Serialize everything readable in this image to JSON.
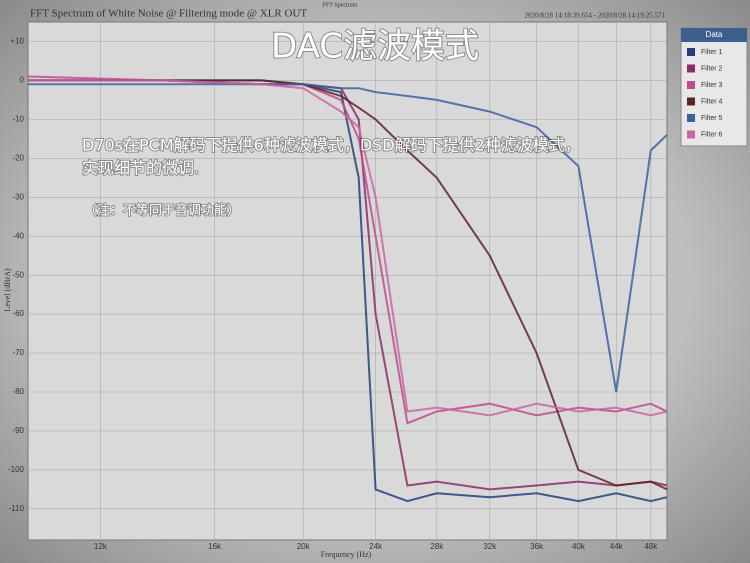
{
  "chart_data": {
    "type": "line",
    "window_title": "FFT Spectrum",
    "title": "FFT Spectrum of White Noise @ Filtering mode @ XLR OUT",
    "timestamp": "2020/8/28 14:18:39.654 - 2020/8/28 14:19:25.571",
    "xlabel": "Frequency (Hz)",
    "ylabel": "Level (dBrA)",
    "annotations": [
      "DAC滤波模式",
      "D70s在PCM解码下提供6种滤波模式，DSD解码下提供2种滤波模式，",
      "实现细节的微调.",
      "（注：不等同于音调功能）"
    ],
    "legend_title": "Data",
    "legend_position": "right",
    "xscale": "log",
    "grid": true,
    "x": [
      10000,
      14000,
      18000,
      20000,
      22000,
      23000,
      24000,
      26000,
      28000,
      32000,
      36000,
      40000,
      44000,
      48000,
      50000
    ],
    "series": [
      {
        "name": "Filter 1",
        "color": "#24407a",
        "values": [
          0,
          0,
          0,
          -1,
          -3,
          -25,
          -105,
          -108,
          -106,
          -107,
          -106,
          -108,
          -106,
          -108,
          -107
        ]
      },
      {
        "name": "Filter 2",
        "color": "#8c2a66",
        "values": [
          0,
          0,
          -1,
          -1,
          -2,
          -10,
          -60,
          -104,
          -103,
          -105,
          -104,
          -103,
          -104,
          -103,
          -104
        ]
      },
      {
        "name": "Filter 3",
        "color": "#c04a8c",
        "values": [
          1,
          0,
          -1,
          -1,
          -5,
          -15,
          -40,
          -88,
          -85,
          -83,
          -86,
          -84,
          -85,
          -83,
          -85
        ]
      },
      {
        "name": "Filter 4",
        "color": "#5e2424",
        "values": [
          0,
          0,
          0,
          -1,
          -4,
          -7,
          -10,
          -18,
          -25,
          -45,
          -70,
          -100,
          -104,
          -103,
          -105
        ]
      },
      {
        "name": "Filter 5",
        "color": "#3f5f9e",
        "values": [
          -1,
          -1,
          -1,
          -1,
          -2,
          -2,
          -3,
          -4,
          -5,
          -8,
          -12,
          -22,
          -80,
          -18,
          -14
        ]
      },
      {
        "name": "Filter 6",
        "color": "#c865a5",
        "values": [
          0,
          0,
          -1,
          -2,
          -8,
          -12,
          -30,
          -85,
          -84,
          -86,
          -83,
          -85,
          -84,
          -86,
          -85
        ]
      }
    ],
    "xlim": [
      10000,
      50000
    ],
    "ylim": [
      -118,
      15
    ],
    "xticks": [
      {
        "value": 12000,
        "label": "12k"
      },
      {
        "value": 16000,
        "label": "16k"
      },
      {
        "value": 20000,
        "label": "20k"
      },
      {
        "value": 24000,
        "label": "24k"
      },
      {
        "value": 28000,
        "label": "28k"
      },
      {
        "value": 32000,
        "label": "32k"
      },
      {
        "value": 36000,
        "label": "36k"
      },
      {
        "value": 40000,
        "label": "40k"
      },
      {
        "value": 44000,
        "label": "44k"
      },
      {
        "value": 48000,
        "label": "48k"
      }
    ],
    "yticks": [
      {
        "value": 10,
        "label": "+10"
      },
      0,
      -10,
      -20,
      -30,
      -40,
      -50,
      -60,
      -70,
      -80,
      -90,
      -100,
      -110
    ]
  }
}
